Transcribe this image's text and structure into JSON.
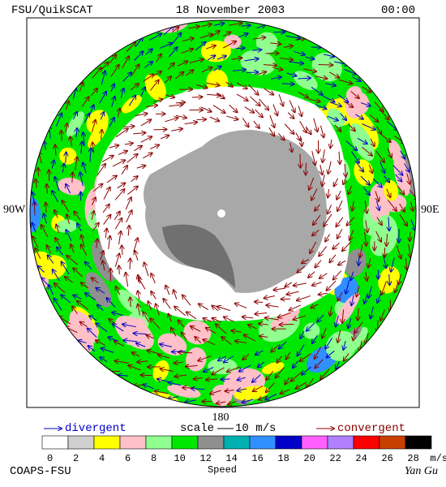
{
  "header": {
    "left": "FSU/QuikSCAT",
    "center": "18 November 2003",
    "right": "00:00"
  },
  "map": {
    "labels": {
      "west": "90W",
      "east": "90E",
      "south": "180"
    }
  },
  "legend": {
    "divergent": "divergent",
    "scale": "scale",
    "scale_value": "10 m/s",
    "convergent": "convergent"
  },
  "colorbar": {
    "colors": [
      "#ffffff",
      "#d0d0d0",
      "#ffff00",
      "#ffc0c8",
      "#90ff90",
      "#00e800",
      "#909090",
      "#00b0b0",
      "#3090ff",
      "#0000c8",
      "#ff60ff",
      "#b080ff",
      "#ff0000",
      "#c84000",
      "#000000"
    ],
    "ticks": [
      0,
      2,
      4,
      6,
      8,
      10,
      12,
      14,
      16,
      18,
      20,
      22,
      24,
      26,
      28
    ],
    "unit": "m/s",
    "label": "Speed"
  },
  "footer": {
    "left": "COAPS-FSU",
    "right": "Yan Gu"
  }
}
